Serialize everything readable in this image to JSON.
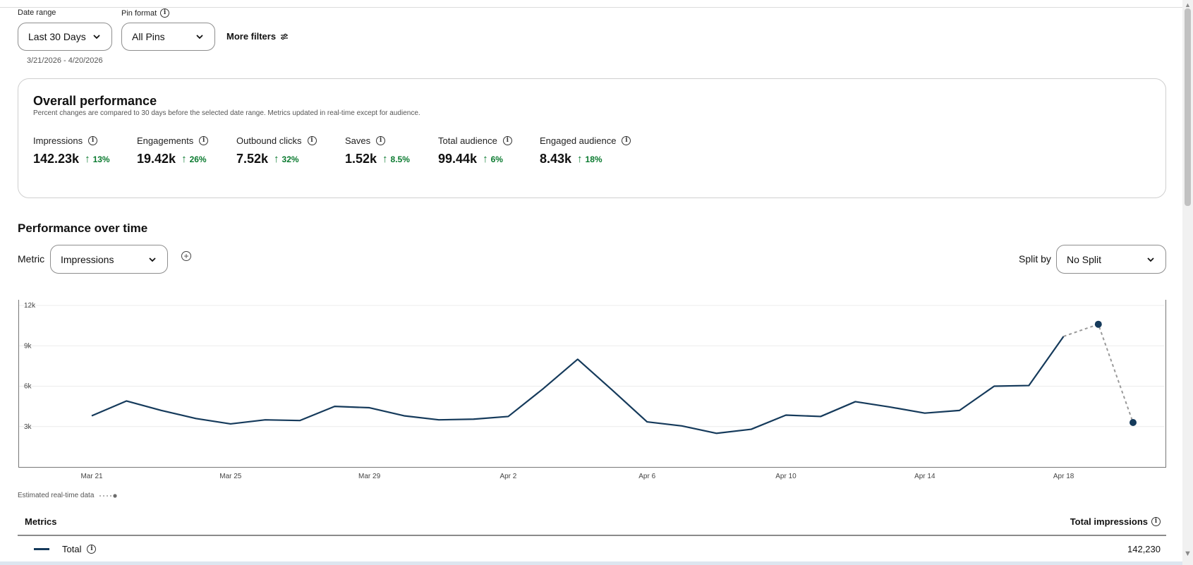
{
  "filters": {
    "date_range_label": "Date range",
    "date_range_value": "Last 30 Days",
    "pin_format_label": "Pin format",
    "pin_format_value": "All Pins",
    "more_filters": "More filters",
    "date_range_text": "3/21/2026 - 4/20/2026"
  },
  "overall": {
    "title": "Overall performance",
    "subtitle": "Percent changes are compared to 30 days before the selected date range. Metrics updated in real-time except for audience.",
    "metrics": [
      {
        "label": "Impressions",
        "value": "142.23k",
        "change": "13%"
      },
      {
        "label": "Engagements",
        "value": "19.42k",
        "change": "26%"
      },
      {
        "label": "Outbound clicks",
        "value": "7.52k",
        "change": "32%"
      },
      {
        "label": "Saves",
        "value": "1.52k",
        "change": "8.5%"
      },
      {
        "label": "Total audience",
        "value": "99.44k",
        "change": "6%"
      },
      {
        "label": "Engaged audience",
        "value": "8.43k",
        "change": "18%"
      }
    ]
  },
  "performance": {
    "title": "Performance over time",
    "metric_label": "Metric",
    "metric_value": "Impressions",
    "split_label": "Split by",
    "split_value": "No Split",
    "estimated_note": "Estimated real-time data"
  },
  "chart_data": {
    "type": "line",
    "ylim": [
      0,
      12000
    ],
    "yticks": [
      3000,
      6000,
      9000,
      12000
    ],
    "ytick_labels": [
      "3k",
      "6k",
      "9k",
      "12k"
    ],
    "xtick_labels": [
      "Mar 21",
      "Mar 25",
      "Mar 29",
      "Apr 2",
      "Apr 6",
      "Apr 10",
      "Apr 14",
      "Apr 18"
    ],
    "x": [
      "Mar 21",
      "Mar 22",
      "Mar 23",
      "Mar 24",
      "Mar 25",
      "Mar 26",
      "Mar 27",
      "Mar 28",
      "Mar 29",
      "Mar 30",
      "Mar 31",
      "Apr 1",
      "Apr 2",
      "Apr 3",
      "Apr 4",
      "Apr 5",
      "Apr 6",
      "Apr 7",
      "Apr 8",
      "Apr 9",
      "Apr 10",
      "Apr 11",
      "Apr 12",
      "Apr 13",
      "Apr 14",
      "Apr 15",
      "Apr 16",
      "Apr 17",
      "Apr 18",
      "Apr 19",
      "Apr 20"
    ],
    "series": [
      {
        "values": [
          3800,
          4900,
          4200,
          3600,
          3200,
          3500,
          3450,
          4500,
          4400,
          3800,
          3500,
          3550,
          3750,
          5800,
          8000,
          5700,
          3350,
          3050,
          2500,
          2800,
          3850,
          3750,
          4850,
          4450,
          4000,
          4200,
          6000,
          6050,
          9700,
          null,
          null
        ]
      },
      {
        "values": [
          null,
          null,
          null,
          null,
          null,
          null,
          null,
          null,
          null,
          null,
          null,
          null,
          null,
          null,
          null,
          null,
          null,
          null,
          null,
          null,
          null,
          null,
          null,
          null,
          null,
          null,
          null,
          null,
          9700,
          10600,
          3300
        ]
      }
    ],
    "colors": {
      "line": "#153a5b",
      "estimated": "#9a9a9a",
      "grid": "#ececec"
    }
  },
  "table": {
    "header_left": "Metrics",
    "header_right": "Total impressions",
    "row_label": "Total",
    "row_value": "142,230"
  }
}
